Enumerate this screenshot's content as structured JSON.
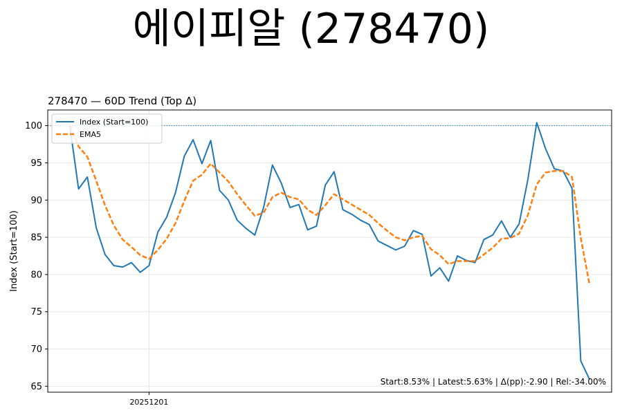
{
  "page": {
    "title": "에이피알 (278470)"
  },
  "chart_data": {
    "type": "line",
    "title": "278470 — 60D Trend (Top Δ)",
    "xlabel": "",
    "ylabel": "Index (Start=100)",
    "ylim": [
      64.2,
      102.1
    ],
    "yticks": [
      65,
      70,
      75,
      80,
      85,
      90,
      95,
      100
    ],
    "xticks": [
      {
        "index": 9,
        "label": "20251201"
      }
    ],
    "reference_line": {
      "y": 100,
      "style": "dotted",
      "color": "#1f77b4"
    },
    "grid": true,
    "legend_position": "top-left",
    "annotation": "Start:8.53% | Latest:5.63% | Δ(pp):-2.90 | Rel:-34.00%",
    "x": [
      0,
      1,
      2,
      3,
      4,
      5,
      6,
      7,
      8,
      9,
      10,
      11,
      12,
      13,
      14,
      15,
      16,
      17,
      18,
      19,
      20,
      21,
      22,
      23,
      24,
      25,
      26,
      27,
      28,
      29,
      30,
      31,
      32,
      33,
      34,
      35,
      36,
      37,
      38,
      39,
      40,
      41,
      42,
      43,
      44,
      45,
      46,
      47,
      48,
      49,
      50,
      51,
      52,
      53,
      54,
      55,
      56,
      57,
      58,
      59
    ],
    "series": [
      {
        "name": "Index (Start=100)",
        "color": "#1f77b4",
        "style": "solid",
        "values": [
          100,
          91.5,
          93.1,
          86.3,
          82.7,
          81.2,
          81.0,
          81.6,
          80.3,
          81.2,
          85.7,
          87.7,
          91.0,
          95.9,
          98.1,
          94.9,
          98.0,
          91.3,
          90.0,
          87.3,
          86.2,
          85.3,
          89.0,
          94.7,
          92.3,
          89.0,
          89.4,
          86.0,
          86.5,
          92.0,
          93.8,
          88.7,
          88.1,
          87.3,
          86.7,
          84.5,
          83.9,
          83.3,
          83.8,
          85.9,
          85.4,
          79.8,
          80.9,
          79.1,
          82.5,
          81.9,
          81.6,
          84.7,
          85.3,
          87.2,
          85.0,
          86.8,
          92.8,
          100.4,
          96.9,
          94.2,
          93.9,
          91.6,
          68.4,
          65.9
        ]
      },
      {
        "name": "EMA5",
        "color": "#ff7f0e",
        "style": "dashed",
        "values": [
          100,
          97.2,
          95.8,
          92.6,
          89.3,
          86.6,
          84.7,
          83.7,
          82.6,
          82.1,
          83.3,
          84.8,
          86.9,
          89.9,
          92.6,
          93.4,
          94.9,
          93.7,
          92.5,
          90.8,
          89.3,
          87.9,
          88.3,
          90.4,
          91.0,
          90.4,
          90.1,
          88.7,
          88.0,
          89.3,
          90.8,
          90.1,
          89.4,
          88.7,
          88.0,
          86.9,
          85.9,
          85.0,
          84.6,
          85.0,
          85.2,
          83.4,
          82.6,
          81.4,
          81.8,
          81.8,
          81.8,
          82.7,
          83.6,
          84.8,
          84.9,
          85.5,
          88.0,
          92.1,
          93.7,
          93.9,
          93.9,
          93.1,
          84.9,
          78.6
        ]
      }
    ]
  }
}
